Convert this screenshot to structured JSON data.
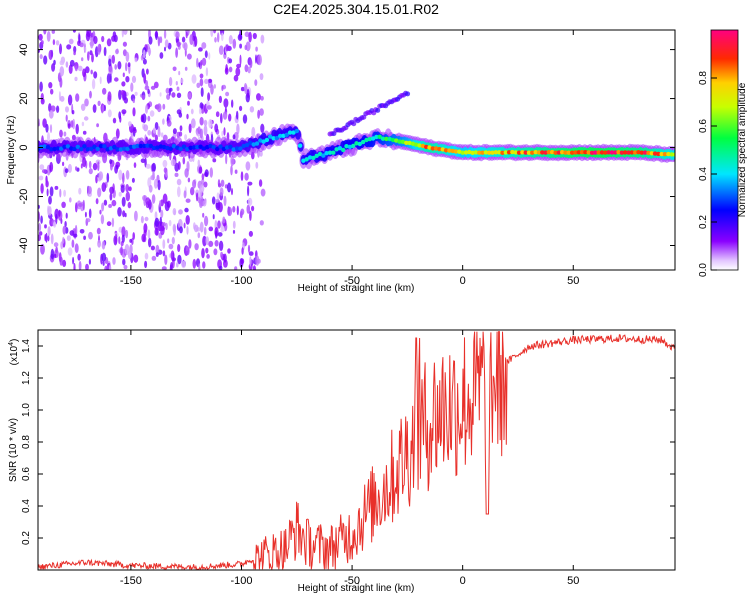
{
  "chart_data": [
    {
      "type": "heatmap",
      "title": "C2E4.2025.304.15.01.R02",
      "xlabel": "Height of straight line (km)",
      "ylabel": "Frequency (Hz)",
      "xlim": [
        -192,
        96
      ],
      "ylim": [
        -50,
        48
      ],
      "xticks": [
        -150,
        -100,
        -50,
        0,
        50
      ],
      "yticks": [
        -40,
        -20,
        0,
        20,
        40
      ],
      "colorbar": {
        "label": "Normalized spectral amplitude",
        "range": [
          0,
          1
        ],
        "ticks": [
          0.0,
          0.2,
          0.4,
          0.6,
          0.8
        ],
        "tick_labels": [
          "0.0",
          "0.2",
          "0.4",
          "0.6",
          "0.8"
        ]
      },
      "ridge": [
        {
          "x": -192,
          "freq": 0,
          "amp": 0.3
        },
        {
          "x": -150,
          "freq": 0,
          "amp": 0.3
        },
        {
          "x": -110,
          "freq": 0,
          "amp": 0.28
        },
        {
          "x": -100,
          "freq": 0,
          "amp": 0.32
        },
        {
          "x": -90,
          "freq": 3,
          "amp": 0.38
        },
        {
          "x": -75,
          "freq": 7,
          "amp": 0.38
        },
        {
          "x": -72,
          "freq": -5,
          "amp": 0.4
        },
        {
          "x": -60,
          "freq": -2,
          "amp": 0.42
        },
        {
          "x": -45,
          "freq": 2,
          "amp": 0.45
        },
        {
          "x": -38,
          "freq": 4,
          "amp": 0.5
        },
        {
          "x": -25,
          "freq": 2,
          "amp": 0.65
        },
        {
          "x": -15,
          "freq": 0,
          "amp": 0.85
        },
        {
          "x": 0,
          "freq": -2,
          "amp": 0.7
        },
        {
          "x": 30,
          "freq": -2,
          "amp": 0.85
        },
        {
          "x": 60,
          "freq": -2,
          "amp": 0.97
        },
        {
          "x": 80,
          "freq": -2,
          "amp": 0.9
        },
        {
          "x": 96,
          "freq": -3,
          "amp": 0.75
        }
      ]
    },
    {
      "type": "line",
      "xlabel": "Height of straight line (km)",
      "ylabel": "SNR (10 * v/v)",
      "y_multiplier": "(x10",
      "y_multiplier_exp": "4",
      "y_multiplier_close": ")",
      "xlim": [
        -192,
        96
      ],
      "ylim": [
        0,
        1.5
      ],
      "xticks": [
        -150,
        -100,
        -50,
        0,
        50
      ],
      "yticks": [
        0.2,
        0.4,
        0.6,
        0.8,
        1.0,
        1.2,
        1.4
      ],
      "ytick_labels": [
        "0.2",
        "0.4",
        "0.6",
        "0.8",
        "1.0",
        "1.2",
        "1.4"
      ],
      "color": "#e8302a",
      "envelope": [
        {
          "x": -192,
          "y": 0.02
        },
        {
          "x": -170,
          "y": 0.05
        },
        {
          "x": -150,
          "y": 0.03
        },
        {
          "x": -120,
          "y": 0.02
        },
        {
          "x": -100,
          "y": 0.04
        },
        {
          "x": -90,
          "y": 0.1
        },
        {
          "x": -80,
          "y": 0.15
        },
        {
          "x": -75,
          "y": 0.28
        },
        {
          "x": -70,
          "y": 0.18
        },
        {
          "x": -60,
          "y": 0.15
        },
        {
          "x": -50,
          "y": 0.25
        },
        {
          "x": -40,
          "y": 0.45
        },
        {
          "x": -30,
          "y": 0.65
        },
        {
          "x": -20,
          "y": 0.9
        },
        {
          "x": -10,
          "y": 1.05
        },
        {
          "x": 0,
          "y": 1.1
        },
        {
          "x": 10,
          "y": 1.2
        },
        {
          "x": 20,
          "y": 1.3
        },
        {
          "x": 30,
          "y": 1.4
        },
        {
          "x": 50,
          "y": 1.44
        },
        {
          "x": 70,
          "y": 1.45
        },
        {
          "x": 90,
          "y": 1.44
        },
        {
          "x": 96,
          "y": 1.38
        }
      ]
    }
  ]
}
